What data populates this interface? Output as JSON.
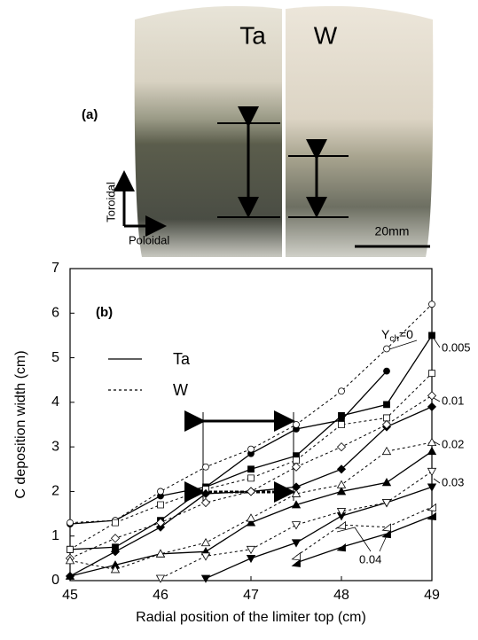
{
  "photo": {
    "panel": "(a)",
    "left": "Ta",
    "right": "W",
    "toroidal": "Toroidal",
    "poloidal": "Poloidal",
    "scale": "20mm"
  },
  "chart_data": {
    "type": "line",
    "panel": "(b)",
    "xlabel": "Radial position of the limiter top (cm)",
    "ylabel": "C deposition width (cm)",
    "x": [
      45,
      45.5,
      46,
      46.5,
      47,
      47.5,
      48,
      48.5,
      49
    ],
    "xlim": [
      45,
      49
    ],
    "xticks": [
      45,
      46,
      47,
      48,
      49
    ],
    "ylim": [
      0,
      7
    ],
    "yticks": [
      0,
      1,
      2,
      3,
      4,
      5,
      6,
      7
    ],
    "legend": [
      {
        "label": "Ta",
        "dashed": false
      },
      {
        "label": "W",
        "dashed": true
      }
    ],
    "ych_zero": {
      "symbol": "Y",
      "subscript": "ch",
      "text": "=0"
    },
    "ych_labels": [
      "0.005",
      "0.01",
      "0.02",
      "0.03",
      "0.04"
    ],
    "series": [
      {
        "marker": "circle",
        "filled": true,
        "dashed": false,
        "color": "#000",
        "values": [
          1.27,
          1.35,
          1.9,
          2.1,
          2.85,
          3.4,
          3.6,
          4.7,
          null
        ]
      },
      {
        "marker": "circle",
        "filled": false,
        "dashed": true,
        "color": "#000",
        "values": [
          1.3,
          1.35,
          2.0,
          2.55,
          2.95,
          3.5,
          4.25,
          5.2,
          6.2
        ]
      },
      {
        "marker": "square",
        "filled": true,
        "dashed": false,
        "color": "#000",
        "values": [
          0.7,
          0.75,
          1.35,
          2.1,
          2.5,
          2.8,
          3.7,
          3.95,
          5.5
        ]
      },
      {
        "marker": "square",
        "filled": false,
        "dashed": true,
        "color": "#000",
        "values": [
          0.7,
          1.3,
          1.7,
          2.05,
          2.3,
          2.7,
          3.5,
          3.65,
          4.65
        ]
      },
      {
        "marker": "diamond",
        "filled": true,
        "dashed": false,
        "color": "#000",
        "values": [
          0.1,
          0.65,
          1.2,
          1.95,
          2.0,
          2.1,
          2.5,
          3.45,
          3.9
        ]
      },
      {
        "marker": "diamond",
        "filled": false,
        "dashed": true,
        "color": "#000",
        "values": [
          0.5,
          0.95,
          1.3,
          1.75,
          2.0,
          2.55,
          3.0,
          3.5,
          4.15
        ]
      },
      {
        "marker": "up",
        "filled": true,
        "dashed": false,
        "color": "#000",
        "values": [
          0.1,
          0.35,
          0.6,
          0.65,
          1.3,
          1.7,
          2.0,
          2.2,
          2.9
        ]
      },
      {
        "marker": "up",
        "filled": false,
        "dashed": true,
        "color": "#000",
        "values": [
          0.45,
          0.25,
          0.6,
          0.85,
          1.4,
          1.95,
          2.15,
          2.9,
          3.1
        ]
      },
      {
        "marker": "down",
        "filled": true,
        "dashed": false,
        "color": "#000",
        "values": [
          null,
          null,
          null,
          0.05,
          0.5,
          0.85,
          1.45,
          1.75,
          2.1
        ]
      },
      {
        "marker": "down",
        "filled": false,
        "dashed": true,
        "color": "#000",
        "values": [
          null,
          null,
          0.05,
          0.55,
          0.7,
          1.25,
          1.55,
          1.75,
          2.45
        ]
      },
      {
        "marker": "left",
        "filled": true,
        "dashed": false,
        "color": "#000",
        "values": [
          null,
          null,
          null,
          null,
          null,
          0.4,
          0.75,
          1.05,
          1.45
        ]
      },
      {
        "marker": "left",
        "filled": false,
        "dashed": true,
        "color": "#000",
        "values": [
          null,
          null,
          null,
          null,
          null,
          0.55,
          1.25,
          1.2,
          1.65
        ]
      }
    ]
  }
}
